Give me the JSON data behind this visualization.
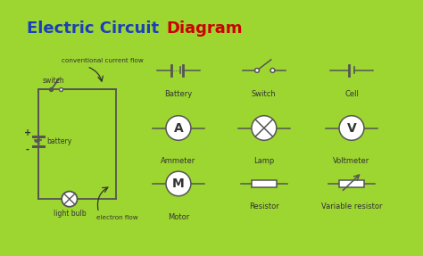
{
  "title_part1": "Electric Circuit ",
  "title_part2": "Diagram",
  "title_color1": "#1a3fbb",
  "title_color2": "#cc0000",
  "bg_color": "#ffffff",
  "outer_bg": "#9dd630",
  "line_color": "#555555",
  "text_color": "#333333",
  "symbol_labels": [
    "Battery",
    "Switch",
    "Cell",
    "Ammeter",
    "Lamp",
    "Voltmeter",
    "Motor",
    "Resistor",
    "Variable resistor"
  ],
  "circuit_labels": {
    "conventional": "conventional current flow",
    "switch": "switch",
    "battery": "battery",
    "light_bulb": "light bulb",
    "electron": "electron flow",
    "plus": "+",
    "minus": "-"
  }
}
